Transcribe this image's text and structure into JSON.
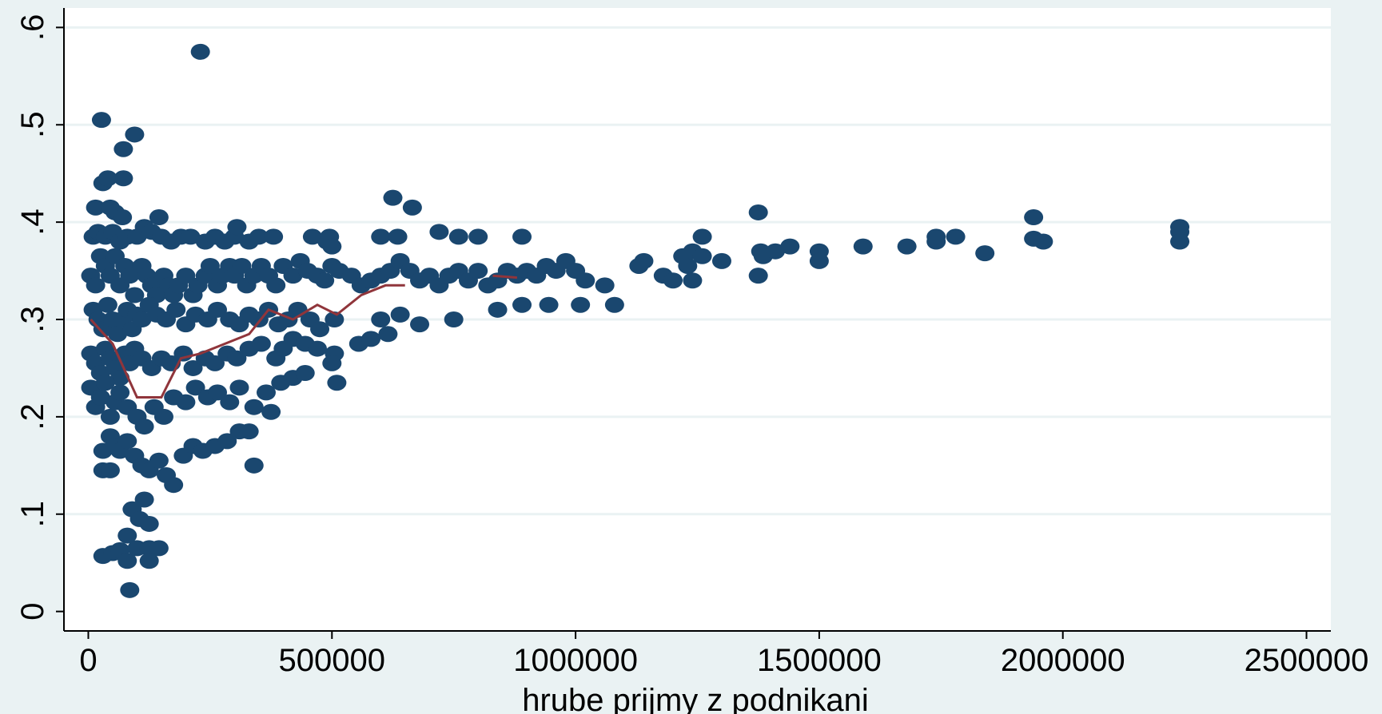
{
  "chart_data": {
    "type": "scatter",
    "title": "",
    "xlabel": "hrube prijmy z podnikani",
    "ylabel": "",
    "xlim": [
      -50000,
      2550000
    ],
    "ylim": [
      -0.02,
      0.62
    ],
    "xticks": [
      0,
      500000,
      1000000,
      1500000,
      2000000,
      2500000
    ],
    "xtick_labels": [
      "0",
      "500000",
      "1000000",
      "1500000",
      "2000000",
      "2500000"
    ],
    "yticks": [
      0,
      0.1,
      0.2,
      0.3,
      0.4,
      0.5,
      0.6
    ],
    "ytick_labels": [
      "0",
      ".1",
      ".2",
      ".3",
      ".4",
      ".5",
      ".6"
    ],
    "grid": "horizontal",
    "colors": {
      "background": "#eaf2f3",
      "plot_area": "#ffffff",
      "gridline": "#eaf2f3",
      "marker": "#1a476f",
      "line": "#90353b"
    },
    "series": [
      {
        "kind": "scatter",
        "points": [
          [
            230000,
            0.575
          ],
          [
            27000,
            0.505
          ],
          [
            95000,
            0.49
          ],
          [
            72000,
            0.475
          ],
          [
            72000,
            0.445
          ],
          [
            30000,
            0.44
          ],
          [
            40000,
            0.445
          ],
          [
            15000,
            0.415
          ],
          [
            45000,
            0.415
          ],
          [
            55000,
            0.41
          ],
          [
            70000,
            0.405
          ],
          [
            145000,
            0.405
          ],
          [
            10000,
            0.385
          ],
          [
            20000,
            0.39
          ],
          [
            35000,
            0.385
          ],
          [
            50000,
            0.39
          ],
          [
            65000,
            0.38
          ],
          [
            80000,
            0.385
          ],
          [
            100000,
            0.385
          ],
          [
            115000,
            0.395
          ],
          [
            130000,
            0.39
          ],
          [
            150000,
            0.385
          ],
          [
            170000,
            0.38
          ],
          [
            190000,
            0.385
          ],
          [
            210000,
            0.385
          ],
          [
            240000,
            0.38
          ],
          [
            260000,
            0.385
          ],
          [
            280000,
            0.38
          ],
          [
            300000,
            0.385
          ],
          [
            305000,
            0.395
          ],
          [
            330000,
            0.38
          ],
          [
            350000,
            0.385
          ],
          [
            380000,
            0.385
          ],
          [
            460000,
            0.385
          ],
          [
            490000,
            0.38
          ],
          [
            495000,
            0.385
          ],
          [
            500000,
            0.375
          ],
          [
            600000,
            0.385
          ],
          [
            635000,
            0.385
          ],
          [
            625000,
            0.425
          ],
          [
            665000,
            0.415
          ],
          [
            720000,
            0.39
          ],
          [
            760000,
            0.385
          ],
          [
            800000,
            0.385
          ],
          [
            890000,
            0.385
          ],
          [
            5000,
            0.345
          ],
          [
            15000,
            0.335
          ],
          [
            25000,
            0.365
          ],
          [
            35000,
            0.355
          ],
          [
            45000,
            0.345
          ],
          [
            55000,
            0.365
          ],
          [
            65000,
            0.335
          ],
          [
            75000,
            0.355
          ],
          [
            85000,
            0.345
          ],
          [
            95000,
            0.325
          ],
          [
            110000,
            0.355
          ],
          [
            120000,
            0.345
          ],
          [
            130000,
            0.335
          ],
          [
            140000,
            0.325
          ],
          [
            155000,
            0.345
          ],
          [
            165000,
            0.335
          ],
          [
            175000,
            0.325
          ],
          [
            185000,
            0.335
          ],
          [
            200000,
            0.345
          ],
          [
            215000,
            0.325
          ],
          [
            225000,
            0.335
          ],
          [
            240000,
            0.345
          ],
          [
            250000,
            0.355
          ],
          [
            265000,
            0.335
          ],
          [
            275000,
            0.345
          ],
          [
            290000,
            0.355
          ],
          [
            300000,
            0.345
          ],
          [
            315000,
            0.355
          ],
          [
            325000,
            0.335
          ],
          [
            340000,
            0.345
          ],
          [
            355000,
            0.355
          ],
          [
            370000,
            0.345
          ],
          [
            385000,
            0.335
          ],
          [
            400000,
            0.355
          ],
          [
            420000,
            0.345
          ],
          [
            435000,
            0.36
          ],
          [
            450000,
            0.35
          ],
          [
            470000,
            0.345
          ],
          [
            485000,
            0.34
          ],
          [
            500000,
            0.355
          ],
          [
            515000,
            0.35
          ],
          [
            540000,
            0.345
          ],
          [
            560000,
            0.335
          ],
          [
            580000,
            0.34
          ],
          [
            600000,
            0.345
          ],
          [
            620000,
            0.35
          ],
          [
            640000,
            0.36
          ],
          [
            660000,
            0.35
          ],
          [
            680000,
            0.34
          ],
          [
            700000,
            0.345
          ],
          [
            720000,
            0.335
          ],
          [
            740000,
            0.345
          ],
          [
            760000,
            0.35
          ],
          [
            780000,
            0.34
          ],
          [
            800000,
            0.35
          ],
          [
            820000,
            0.335
          ],
          [
            840000,
            0.34
          ],
          [
            860000,
            0.35
          ],
          [
            880000,
            0.345
          ],
          [
            900000,
            0.35
          ],
          [
            920000,
            0.345
          ],
          [
            940000,
            0.355
          ],
          [
            960000,
            0.35
          ],
          [
            980000,
            0.36
          ],
          [
            1000000,
            0.35
          ],
          [
            1020000,
            0.34
          ],
          [
            1060000,
            0.335
          ],
          [
            10000,
            0.31
          ],
          [
            20000,
            0.3
          ],
          [
            30000,
            0.29
          ],
          [
            40000,
            0.315
          ],
          [
            50000,
            0.3
          ],
          [
            60000,
            0.285
          ],
          [
            70000,
            0.3
          ],
          [
            80000,
            0.31
          ],
          [
            90000,
            0.29
          ],
          [
            100000,
            0.305
          ],
          [
            110000,
            0.3
          ],
          [
            125000,
            0.315
          ],
          [
            140000,
            0.305
          ],
          [
            160000,
            0.3
          ],
          [
            180000,
            0.31
          ],
          [
            200000,
            0.295
          ],
          [
            220000,
            0.305
          ],
          [
            245000,
            0.3
          ],
          [
            265000,
            0.31
          ],
          [
            290000,
            0.3
          ],
          [
            310000,
            0.295
          ],
          [
            330000,
            0.305
          ],
          [
            350000,
            0.3
          ],
          [
            370000,
            0.31
          ],
          [
            390000,
            0.295
          ],
          [
            410000,
            0.3
          ],
          [
            430000,
            0.31
          ],
          [
            455000,
            0.3
          ],
          [
            475000,
            0.29
          ],
          [
            505000,
            0.3
          ],
          [
            600000,
            0.3
          ],
          [
            640000,
            0.305
          ],
          [
            680000,
            0.295
          ],
          [
            750000,
            0.3
          ],
          [
            840000,
            0.31
          ],
          [
            890000,
            0.315
          ],
          [
            945000,
            0.315
          ],
          [
            1010000,
            0.315
          ],
          [
            1080000,
            0.315
          ],
          [
            5000,
            0.265
          ],
          [
            15000,
            0.255
          ],
          [
            25000,
            0.245
          ],
          [
            35000,
            0.27
          ],
          [
            45000,
            0.26
          ],
          [
            55000,
            0.25
          ],
          [
            65000,
            0.24
          ],
          [
            75000,
            0.265
          ],
          [
            85000,
            0.255
          ],
          [
            95000,
            0.27
          ],
          [
            110000,
            0.26
          ],
          [
            130000,
            0.25
          ],
          [
            150000,
            0.26
          ],
          [
            170000,
            0.255
          ],
          [
            195000,
            0.265
          ],
          [
            215000,
            0.25
          ],
          [
            240000,
            0.26
          ],
          [
            260000,
            0.255
          ],
          [
            285000,
            0.265
          ],
          [
            305000,
            0.26
          ],
          [
            330000,
            0.27
          ],
          [
            355000,
            0.275
          ],
          [
            385000,
            0.26
          ],
          [
            400000,
            0.27
          ],
          [
            420000,
            0.28
          ],
          [
            445000,
            0.275
          ],
          [
            470000,
            0.27
          ],
          [
            505000,
            0.265
          ],
          [
            500000,
            0.255
          ],
          [
            555000,
            0.275
          ],
          [
            580000,
            0.28
          ],
          [
            615000,
            0.285
          ],
          [
            5000,
            0.23
          ],
          [
            15000,
            0.21
          ],
          [
            25000,
            0.22
          ],
          [
            35000,
            0.235
          ],
          [
            45000,
            0.2
          ],
          [
            55000,
            0.215
          ],
          [
            65000,
            0.225
          ],
          [
            80000,
            0.21
          ],
          [
            100000,
            0.2
          ],
          [
            115000,
            0.19
          ],
          [
            135000,
            0.21
          ],
          [
            155000,
            0.2
          ],
          [
            175000,
            0.22
          ],
          [
            200000,
            0.215
          ],
          [
            220000,
            0.23
          ],
          [
            245000,
            0.22
          ],
          [
            265000,
            0.225
          ],
          [
            290000,
            0.215
          ],
          [
            310000,
            0.23
          ],
          [
            340000,
            0.21
          ],
          [
            365000,
            0.225
          ],
          [
            375000,
            0.205
          ],
          [
            395000,
            0.235
          ],
          [
            420000,
            0.24
          ],
          [
            445000,
            0.245
          ],
          [
            510000,
            0.235
          ],
          [
            30000,
            0.165
          ],
          [
            45000,
            0.18
          ],
          [
            55000,
            0.17
          ],
          [
            65000,
            0.165
          ],
          [
            80000,
            0.175
          ],
          [
            95000,
            0.16
          ],
          [
            110000,
            0.15
          ],
          [
            125000,
            0.145
          ],
          [
            145000,
            0.155
          ],
          [
            160000,
            0.14
          ],
          [
            175000,
            0.13
          ],
          [
            195000,
            0.16
          ],
          [
            215000,
            0.17
          ],
          [
            235000,
            0.165
          ],
          [
            260000,
            0.17
          ],
          [
            285000,
            0.175
          ],
          [
            310000,
            0.185
          ],
          [
            330000,
            0.185
          ],
          [
            340000,
            0.15
          ],
          [
            30000,
            0.145
          ],
          [
            45000,
            0.145
          ],
          [
            90000,
            0.105
          ],
          [
            115000,
            0.115
          ],
          [
            105000,
            0.095
          ],
          [
            125000,
            0.09
          ],
          [
            80000,
            0.078
          ],
          [
            30000,
            0.057
          ],
          [
            50000,
            0.06
          ],
          [
            65000,
            0.063
          ],
          [
            80000,
            0.052
          ],
          [
            100000,
            0.065
          ],
          [
            125000,
            0.065
          ],
          [
            145000,
            0.065
          ],
          [
            125000,
            0.052
          ],
          [
            85000,
            0.022
          ],
          [
            1140000,
            0.36
          ],
          [
            1130000,
            0.355
          ],
          [
            1180000,
            0.345
          ],
          [
            1200000,
            0.34
          ],
          [
            1230000,
            0.355
          ],
          [
            1220000,
            0.365
          ],
          [
            1240000,
            0.37
          ],
          [
            1260000,
            0.365
          ],
          [
            1240000,
            0.34
          ],
          [
            1260000,
            0.385
          ],
          [
            1300000,
            0.36
          ],
          [
            1375000,
            0.41
          ],
          [
            1380000,
            0.37
          ],
          [
            1375000,
            0.345
          ],
          [
            1385000,
            0.365
          ],
          [
            1410000,
            0.37
          ],
          [
            1440000,
            0.375
          ],
          [
            1500000,
            0.37
          ],
          [
            1500000,
            0.36
          ],
          [
            1590000,
            0.375
          ],
          [
            1680000,
            0.375
          ],
          [
            1740000,
            0.38
          ],
          [
            1740000,
            0.385
          ],
          [
            1780000,
            0.385
          ],
          [
            1840000,
            0.368
          ],
          [
            1940000,
            0.405
          ],
          [
            1940000,
            0.383
          ],
          [
            1960000,
            0.38
          ],
          [
            2240000,
            0.39
          ],
          [
            2240000,
            0.395
          ],
          [
            2240000,
            0.38
          ]
        ]
      },
      {
        "kind": "line",
        "points": [
          [
            5000,
            0.3
          ],
          [
            50000,
            0.275
          ],
          [
            100000,
            0.22
          ],
          [
            150000,
            0.22
          ],
          [
            190000,
            0.26
          ],
          [
            230000,
            0.265
          ],
          [
            280000,
            0.275
          ],
          [
            330000,
            0.285
          ],
          [
            370000,
            0.31
          ],
          [
            420000,
            0.3
          ],
          [
            470000,
            0.315
          ],
          [
            510000,
            0.305
          ],
          [
            560000,
            0.325
          ],
          [
            610000,
            0.335
          ],
          [
            650000,
            0.335
          ]
        ]
      },
      {
        "kind": "line",
        "points": [
          [
            830000,
            0.345
          ],
          [
            880000,
            0.343
          ]
        ]
      }
    ]
  }
}
